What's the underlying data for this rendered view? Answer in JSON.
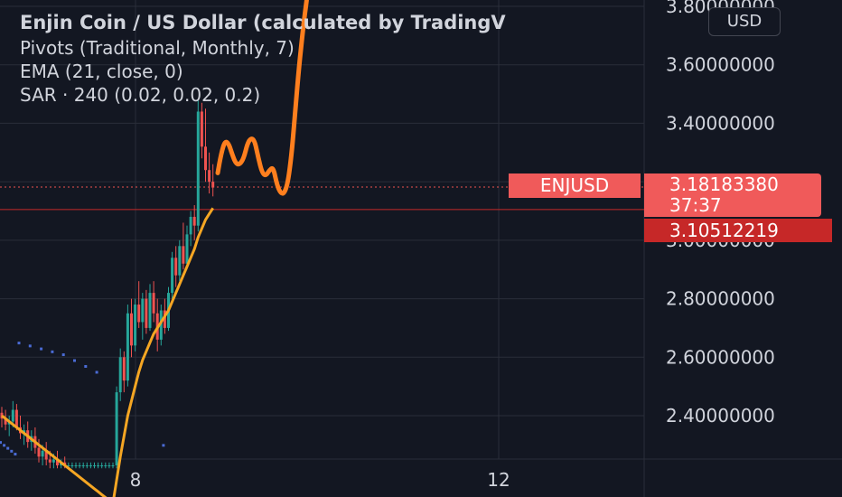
{
  "header": {
    "title": "Enjin Coin / US Dollar (calculated by TradingV",
    "indicators": [
      "Pivots (Traditional, Monthly, 7)",
      "EMA (21, close, 0)",
      "SAR · 240 (0.02, 0.02, 0.2)"
    ]
  },
  "currency_button": "USD",
  "symbol_tag": "ENJUSD",
  "price_tag": {
    "price": "3.18183380",
    "countdown": "37:37"
  },
  "line_tag": "3.10512219",
  "colors": {
    "background": "#131722",
    "grid": "#2a2e39",
    "up": "#26a69a",
    "down": "#ef5350",
    "ema": "#f5a623",
    "drawing": "#ff7f1e",
    "sar": "#4a6bd4",
    "price_tag": "#f05a5a",
    "line_tag": "#c62828"
  },
  "chart_data": {
    "type": "candlestick",
    "price_axis_ticks": [
      "3.80000000",
      "3.60000000",
      "3.40000000",
      "3.20000000",
      "3.00000000",
      "2.80000000",
      "2.60000000",
      "2.40000000"
    ],
    "time_axis_ticks": [
      "8",
      "12"
    ],
    "ylim": [
      2.22,
      3.82
    ],
    "current_price": 3.1818338,
    "horizontal_line": 3.10512219,
    "candles": [
      [
        2.41,
        2.43,
        2.36,
        2.39
      ],
      [
        2.39,
        2.42,
        2.35,
        2.37
      ],
      [
        2.37,
        2.4,
        2.33,
        2.38
      ],
      [
        2.38,
        2.45,
        2.36,
        2.42
      ],
      [
        2.42,
        2.44,
        2.35,
        2.36
      ],
      [
        2.36,
        2.4,
        2.32,
        2.34
      ],
      [
        2.34,
        2.37,
        2.3,
        2.35
      ],
      [
        2.35,
        2.38,
        2.29,
        2.31
      ],
      [
        2.31,
        2.35,
        2.28,
        2.33
      ],
      [
        2.33,
        2.36,
        2.27,
        2.29
      ],
      [
        2.29,
        2.32,
        2.24,
        2.26
      ],
      [
        2.26,
        2.3,
        2.23,
        2.28
      ],
      [
        2.28,
        2.31,
        2.23,
        2.25
      ],
      [
        2.25,
        2.28,
        2.22,
        2.24
      ],
      [
        2.24,
        2.27,
        2.22,
        2.25
      ],
      [
        2.25,
        2.28,
        2.22,
        2.23
      ],
      [
        2.23,
        2.25,
        2.22,
        2.24
      ],
      [
        2.24,
        2.26,
        2.22,
        2.23
      ],
      [
        2.23,
        2.24,
        2.22,
        2.23
      ],
      [
        2.23,
        2.24,
        2.22,
        2.23
      ],
      [
        2.23,
        2.24,
        2.22,
        2.23
      ],
      [
        2.23,
        2.24,
        2.22,
        2.23
      ],
      [
        2.23,
        2.24,
        2.22,
        2.23
      ],
      [
        2.23,
        2.24,
        2.22,
        2.23
      ],
      [
        2.23,
        2.24,
        2.22,
        2.23
      ],
      [
        2.23,
        2.24,
        2.22,
        2.23
      ],
      [
        2.23,
        2.24,
        2.22,
        2.23
      ],
      [
        2.23,
        2.24,
        2.22,
        2.23
      ],
      [
        2.23,
        2.24,
        2.22,
        2.23
      ],
      [
        2.23,
        2.24,
        2.22,
        2.23
      ],
      [
        2.23,
        2.24,
        2.22,
        2.23
      ],
      [
        2.23,
        2.5,
        2.22,
        2.48
      ],
      [
        2.48,
        2.63,
        2.45,
        2.6
      ],
      [
        2.6,
        2.62,
        2.48,
        2.52
      ],
      [
        2.52,
        2.78,
        2.5,
        2.75
      ],
      [
        2.75,
        2.8,
        2.6,
        2.64
      ],
      [
        2.64,
        2.8,
        2.62,
        2.78
      ],
      [
        2.78,
        2.86,
        2.7,
        2.72
      ],
      [
        2.72,
        2.82,
        2.66,
        2.8
      ],
      [
        2.8,
        2.83,
        2.68,
        2.7
      ],
      [
        2.7,
        2.85,
        2.69,
        2.82
      ],
      [
        2.82,
        2.86,
        2.72,
        2.75
      ],
      [
        2.75,
        2.8,
        2.62,
        2.66
      ],
      [
        2.66,
        2.78,
        2.64,
        2.76
      ],
      [
        2.76,
        2.8,
        2.68,
        2.7
      ],
      [
        2.7,
        2.84,
        2.69,
        2.82
      ],
      [
        2.82,
        2.96,
        2.8,
        2.94
      ],
      [
        2.94,
        2.98,
        2.84,
        2.88
      ],
      [
        2.88,
        3.0,
        2.86,
        2.98
      ],
      [
        2.98,
        3.06,
        2.9,
        2.92
      ],
      [
        2.92,
        3.05,
        2.9,
        3.02
      ],
      [
        3.02,
        3.1,
        2.98,
        3.08
      ],
      [
        3.08,
        3.12,
        3.0,
        3.05
      ],
      [
        3.05,
        3.48,
        3.03,
        3.44
      ],
      [
        3.44,
        3.47,
        3.28,
        3.32
      ],
      [
        3.32,
        3.45,
        3.2,
        3.24
      ],
      [
        3.24,
        3.3,
        3.16,
        3.2
      ],
      [
        3.2,
        3.26,
        3.15,
        3.18
      ]
    ],
    "ema": [
      2.4,
      2.39,
      2.38,
      2.37,
      2.36,
      2.35,
      2.34,
      2.33,
      2.32,
      2.31,
      2.3,
      2.29,
      2.28,
      2.27,
      2.26,
      2.25,
      2.24,
      2.23,
      2.22,
      2.21,
      2.2,
      2.19,
      2.18,
      2.17,
      2.16,
      2.15,
      2.14,
      2.13,
      2.12,
      2.11,
      2.1,
      2.18,
      2.26,
      2.33,
      2.4,
      2.45,
      2.5,
      2.55,
      2.59,
      2.62,
      2.65,
      2.68,
      2.7,
      2.72,
      2.74,
      2.76,
      2.79,
      2.82,
      2.85,
      2.88,
      2.91,
      2.94,
      2.97,
      3.01,
      3.04,
      3.07,
      3.09,
      3.11
    ],
    "sar": [
      [
        0,
        2.31
      ],
      [
        1,
        2.3
      ],
      [
        2,
        2.29
      ],
      [
        3,
        2.28
      ],
      [
        4,
        2.27
      ],
      [
        5,
        2.65
      ],
      [
        8,
        2.64
      ],
      [
        11,
        2.63
      ],
      [
        14,
        2.62
      ],
      [
        17,
        2.61
      ],
      [
        20,
        2.59
      ],
      [
        23,
        2.57
      ],
      [
        26,
        2.55
      ],
      [
        44,
        2.3
      ]
    ],
    "drawing": [
      [
        60,
        3.23
      ],
      [
        61,
        3.3
      ],
      [
        62,
        3.34
      ],
      [
        63,
        3.33
      ],
      [
        64,
        3.29
      ],
      [
        65,
        3.26
      ],
      [
        66,
        3.26
      ],
      [
        67,
        3.28
      ],
      [
        68,
        3.33
      ],
      [
        69,
        3.35
      ],
      [
        70,
        3.34
      ],
      [
        71,
        3.28
      ],
      [
        72,
        3.23
      ],
      [
        73,
        3.22
      ],
      [
        74,
        3.24
      ],
      [
        75,
        3.25
      ],
      [
        76,
        3.19
      ],
      [
        77,
        3.16
      ],
      [
        78,
        3.16
      ],
      [
        79,
        3.2
      ],
      [
        80,
        3.3
      ],
      [
        81,
        3.45
      ],
      [
        82,
        3.6
      ],
      [
        83,
        3.72
      ],
      [
        84,
        3.82
      ]
    ]
  }
}
